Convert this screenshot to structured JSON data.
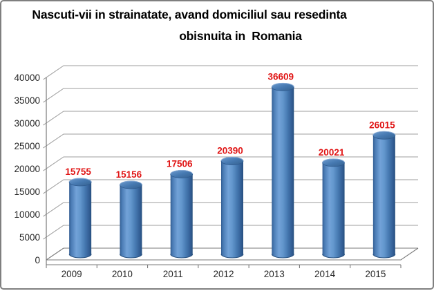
{
  "chart_data": {
    "type": "bar",
    "subtype": "3d-cylinder",
    "title": "Nascuti-vii in strainatate, avand domiciliul sau resedinta obisnuita in Romania",
    "title_lines": [
      "Nascuti-vii in strainatate, avand domiciliul sau resedinta",
      "obisnuita in  Romania"
    ],
    "categories": [
      "2009",
      "2010",
      "2011",
      "2012",
      "2013",
      "2014",
      "2015"
    ],
    "values": [
      15755,
      15156,
      17506,
      20390,
      36609,
      20021,
      26015
    ],
    "data_labels": [
      "15755",
      "15156",
      "17506",
      "20390",
      "36609",
      "20021",
      "26015"
    ],
    "xlabel": "",
    "ylabel": "",
    "ylim": [
      0,
      40000
    ],
    "ytick_step": 5000,
    "ytick_labels": [
      "0",
      "5000",
      "10000",
      "15000",
      "20000",
      "25000",
      "30000",
      "35000",
      "40000"
    ],
    "grid": true,
    "legend": "none",
    "colors": {
      "bar_fill": "#4F81BD",
      "bar_highlight": "#72A2D8",
      "bar_edge_dark": "#27507E",
      "data_label": "#E01414",
      "gridline": "#9C9C9C",
      "axis": "#7A7A7A",
      "tick_label": "#262626",
      "title": "#000000",
      "background": "#FFFFFF",
      "frame_border": "#7F7F7F"
    }
  }
}
